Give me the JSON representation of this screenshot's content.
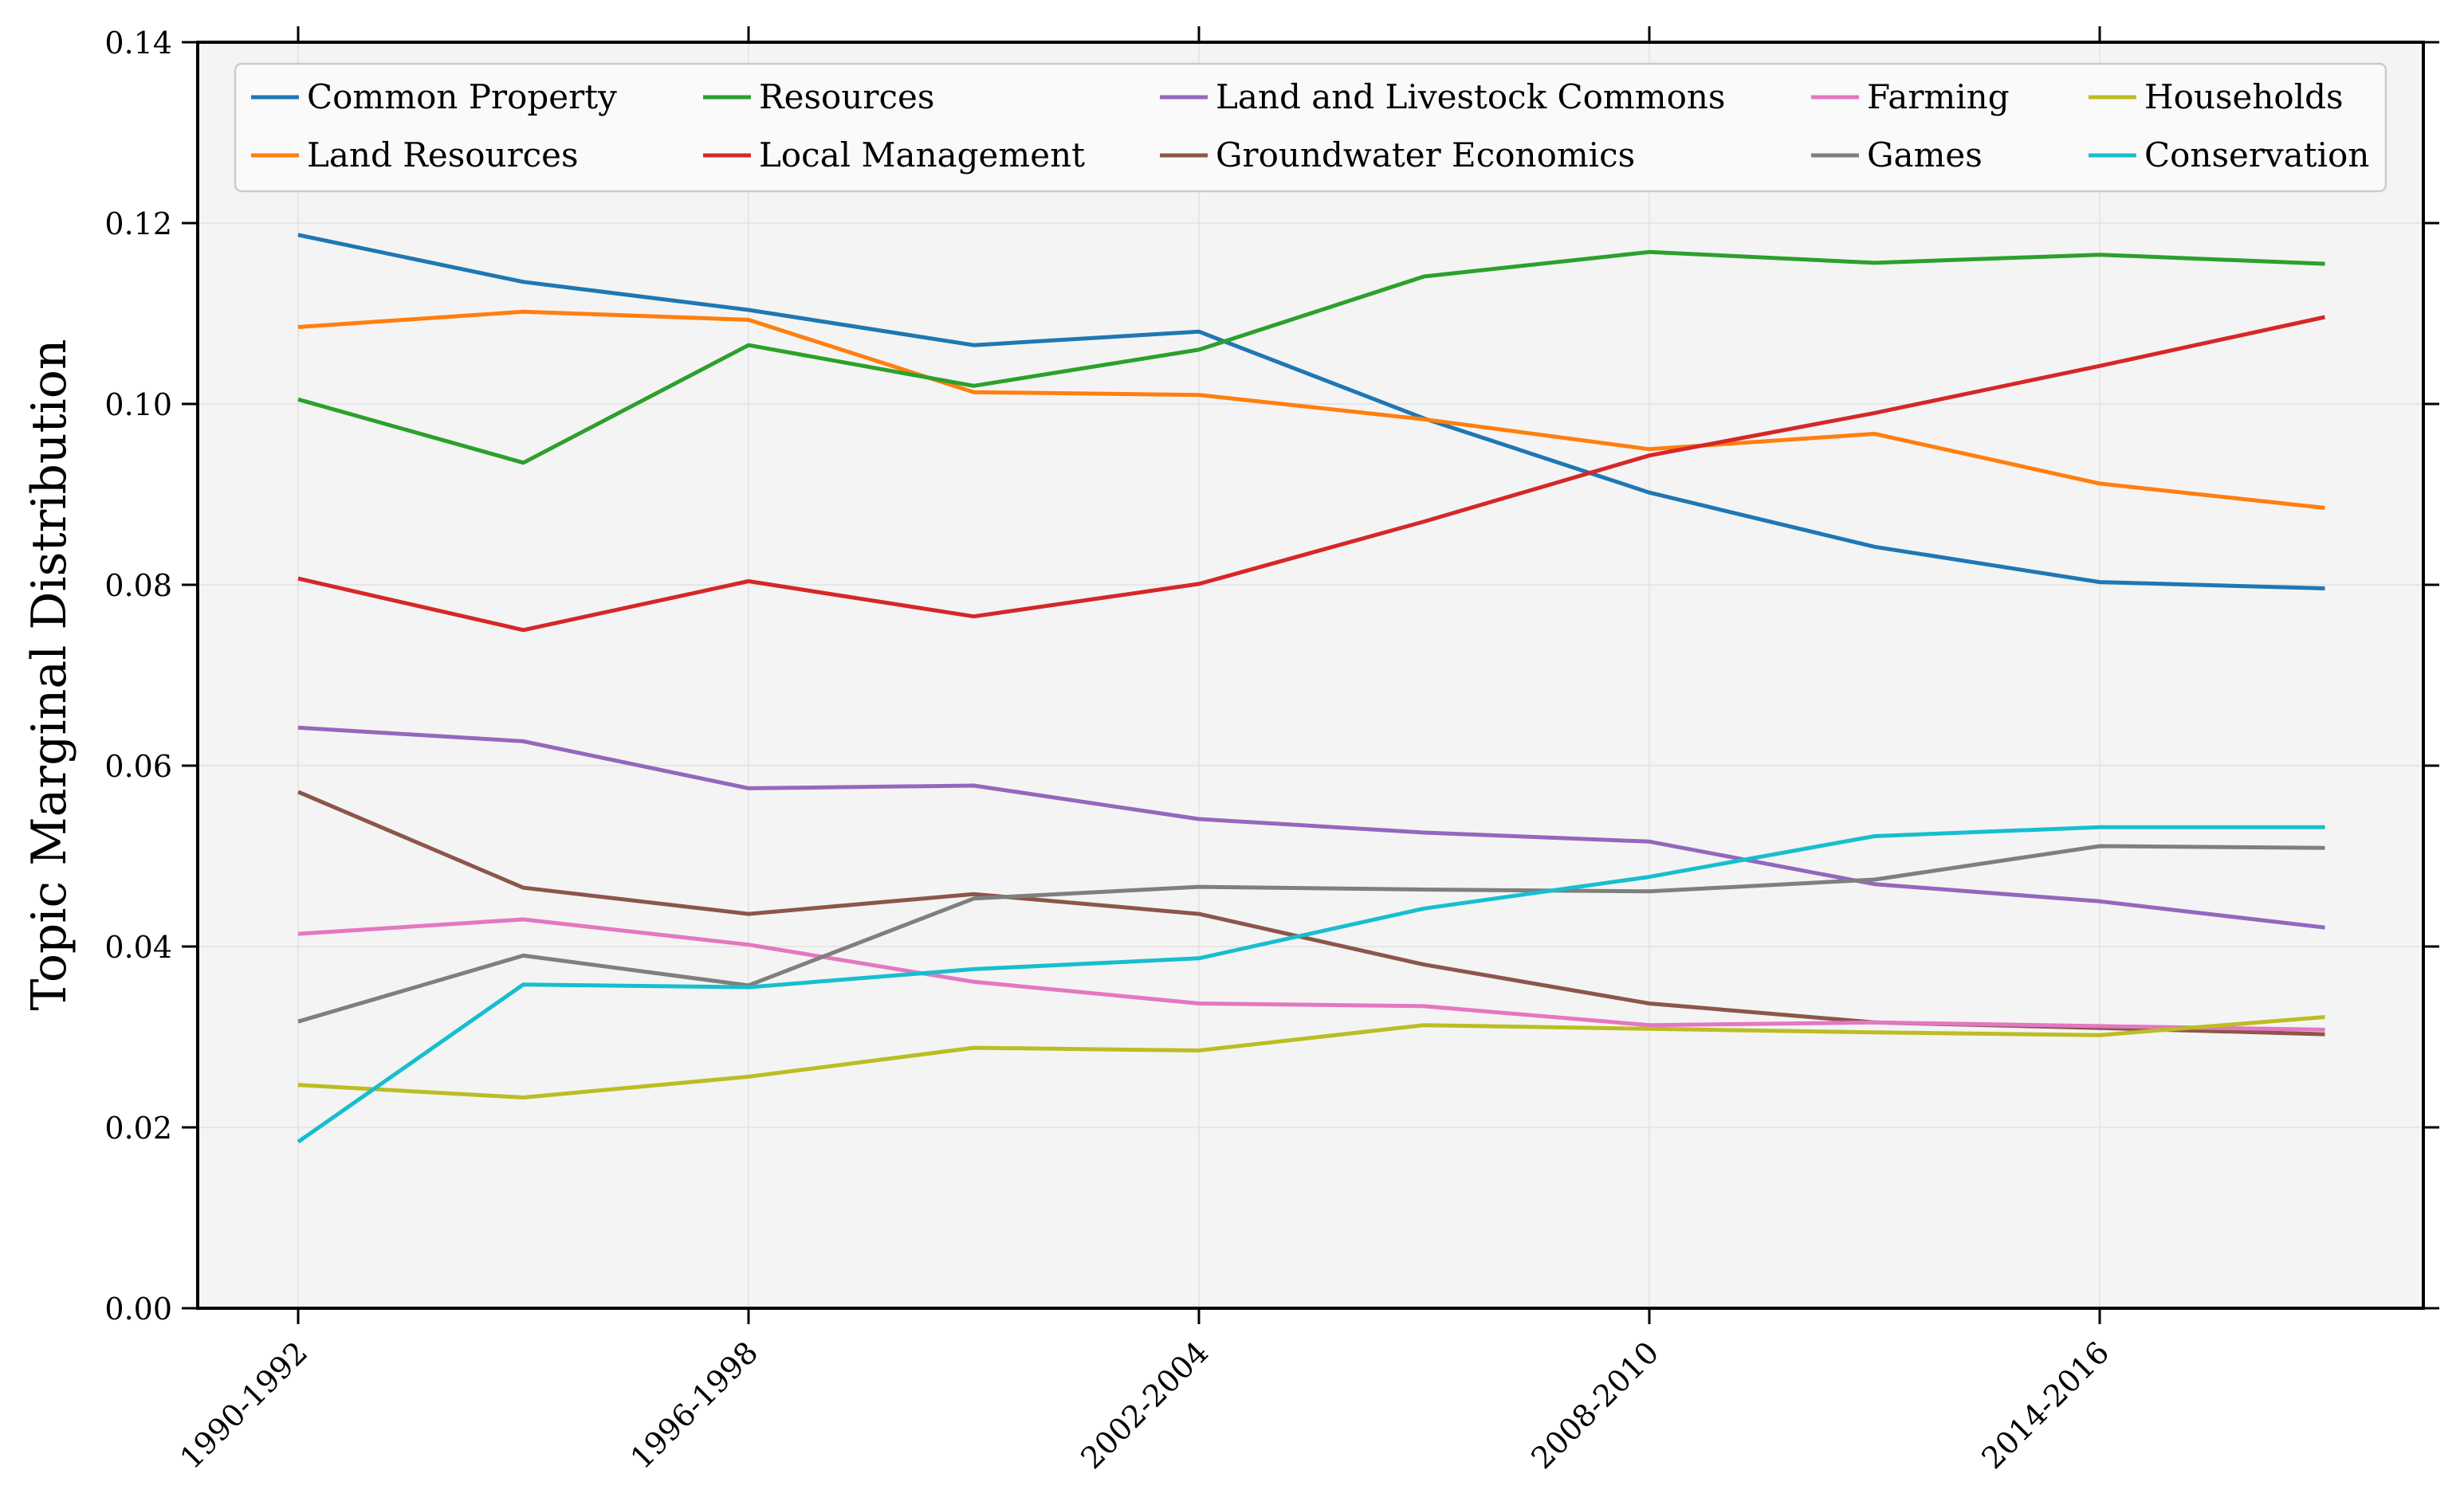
{
  "chart_data": {
    "type": "line",
    "title": "",
    "xlabel": "",
    "ylabel": "Topic Marginal Distribution",
    "ylim": [
      0,
      0.14
    ],
    "yticks": [
      "0.00",
      "0.02",
      "0.04",
      "0.06",
      "0.08",
      "0.10",
      "0.12",
      "0.14"
    ],
    "ytick_values": [
      0,
      0.02,
      0.04,
      0.06,
      0.08,
      0.1,
      0.12,
      0.14
    ],
    "x_ticks": [
      {
        "index": 0,
        "label": "1990-1992"
      },
      {
        "index": 2,
        "label": "1996-1998"
      },
      {
        "index": 4,
        "label": "2002-2004"
      },
      {
        "index": 6,
        "label": "2008-2010"
      },
      {
        "index": 8,
        "label": "2014-2016"
      }
    ],
    "x_points": 10,
    "grid": true,
    "legend_position": "top",
    "series": [
      {
        "name": "Common Property",
        "color": "#1f77b4",
        "values": [
          0.1187,
          0.1135,
          0.1104,
          0.1065,
          0.108,
          0.0984,
          0.0902,
          0.0842,
          0.0803,
          0.0796
        ]
      },
      {
        "name": "Land Resources",
        "color": "#ff7f0e",
        "values": [
          0.1085,
          0.1102,
          0.1093,
          0.1013,
          0.101,
          0.0983,
          0.095,
          0.0967,
          0.0912,
          0.0885
        ]
      },
      {
        "name": "Resources",
        "color": "#2ca02c",
        "values": [
          0.1005,
          0.0935,
          0.1065,
          0.102,
          0.106,
          0.1141,
          0.1168,
          0.1156,
          0.1165,
          0.1155
        ]
      },
      {
        "name": "Local Management",
        "color": "#d62728",
        "values": [
          0.0807,
          0.075,
          0.0804,
          0.0765,
          0.0801,
          0.087,
          0.0943,
          0.099,
          0.1042,
          0.1096
        ]
      },
      {
        "name": "Land and Livestock Commons",
        "color": "#9467bd",
        "values": [
          0.0642,
          0.0627,
          0.0575,
          0.0578,
          0.0541,
          0.0526,
          0.0516,
          0.0469,
          0.045,
          0.0421
        ]
      },
      {
        "name": "Groundwater Economics",
        "color": "#8c564b",
        "values": [
          0.0571,
          0.0465,
          0.0436,
          0.0458,
          0.0436,
          0.038,
          0.0337,
          0.0316,
          0.031,
          0.0303
        ]
      },
      {
        "name": "Farming",
        "color": "#e377c2",
        "values": [
          0.0414,
          0.043,
          0.0402,
          0.0361,
          0.0337,
          0.0334,
          0.0313,
          0.0316,
          0.0312,
          0.0308
        ]
      },
      {
        "name": "Games",
        "color": "#7f7f7f",
        "values": [
          0.0317,
          0.039,
          0.0357,
          0.0453,
          0.0466,
          0.0463,
          0.0461,
          0.0474,
          0.0511,
          0.0509
        ]
      },
      {
        "name": "Households",
        "color": "#bcbd22",
        "values": [
          0.0247,
          0.0233,
          0.0256,
          0.0288,
          0.0285,
          0.0313,
          0.0309,
          0.0305,
          0.0302,
          0.0322
        ]
      },
      {
        "name": "Conservation",
        "color": "#17becf",
        "values": [
          0.0184,
          0.0358,
          0.0355,
          0.0375,
          0.0387,
          0.0442,
          0.0477,
          0.0522,
          0.0532,
          0.0532
        ]
      }
    ]
  }
}
